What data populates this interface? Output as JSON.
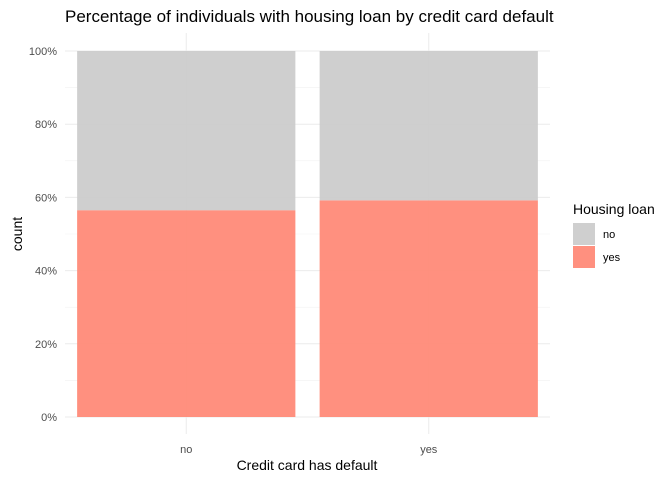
{
  "chart_data": {
    "type": "bar",
    "stacked": true,
    "position": "fill",
    "title": "Percentage of individuals with housing loan by credit card default",
    "xlabel": "Credit card has default",
    "ylabel": "count",
    "categories": [
      "no",
      "yes"
    ],
    "series": [
      {
        "name": "no",
        "values": [
          43.5,
          40.8
        ],
        "color": "#cccccc"
      },
      {
        "name": "yes",
        "values": [
          56.5,
          59.2
        ],
        "color": "#ff8a78"
      }
    ],
    "ylim": [
      0,
      100
    ],
    "yticks": [
      0,
      20,
      40,
      60,
      80,
      100
    ],
    "ytick_labels": [
      "0%",
      "20%",
      "40%",
      "60%",
      "80%",
      "100%"
    ],
    "grid": true,
    "legend": {
      "title": "Housing loan",
      "position": "right"
    }
  }
}
